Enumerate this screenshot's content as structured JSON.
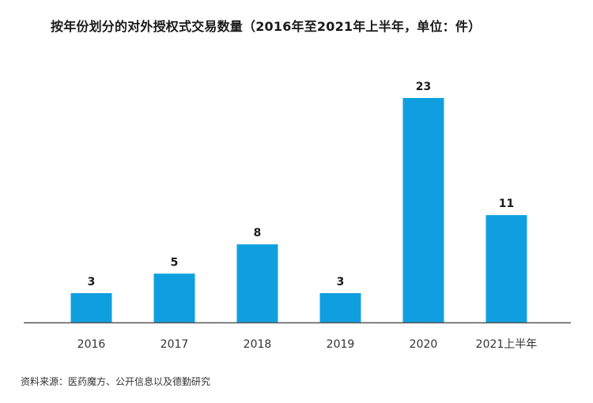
{
  "chart_data": {
    "type": "bar",
    "title": "按年份划分的对外授权式交易数量（2016年至2021年上半年，单位：件）",
    "categories": [
      "2016",
      "2017",
      "2018",
      "2019",
      "2020",
      "2021上半年"
    ],
    "values": [
      3,
      5,
      8,
      3,
      23,
      11
    ],
    "data_labels": [
      "3",
      "5",
      "8",
      "3",
      "23",
      "11"
    ],
    "bar_color": "#0f9fe0",
    "axis_color": "#555555",
    "ylim": [
      0,
      23
    ],
    "grid": false,
    "legend": "none"
  },
  "source": "资料来源：医药魔方、公开信息以及德勤研究"
}
